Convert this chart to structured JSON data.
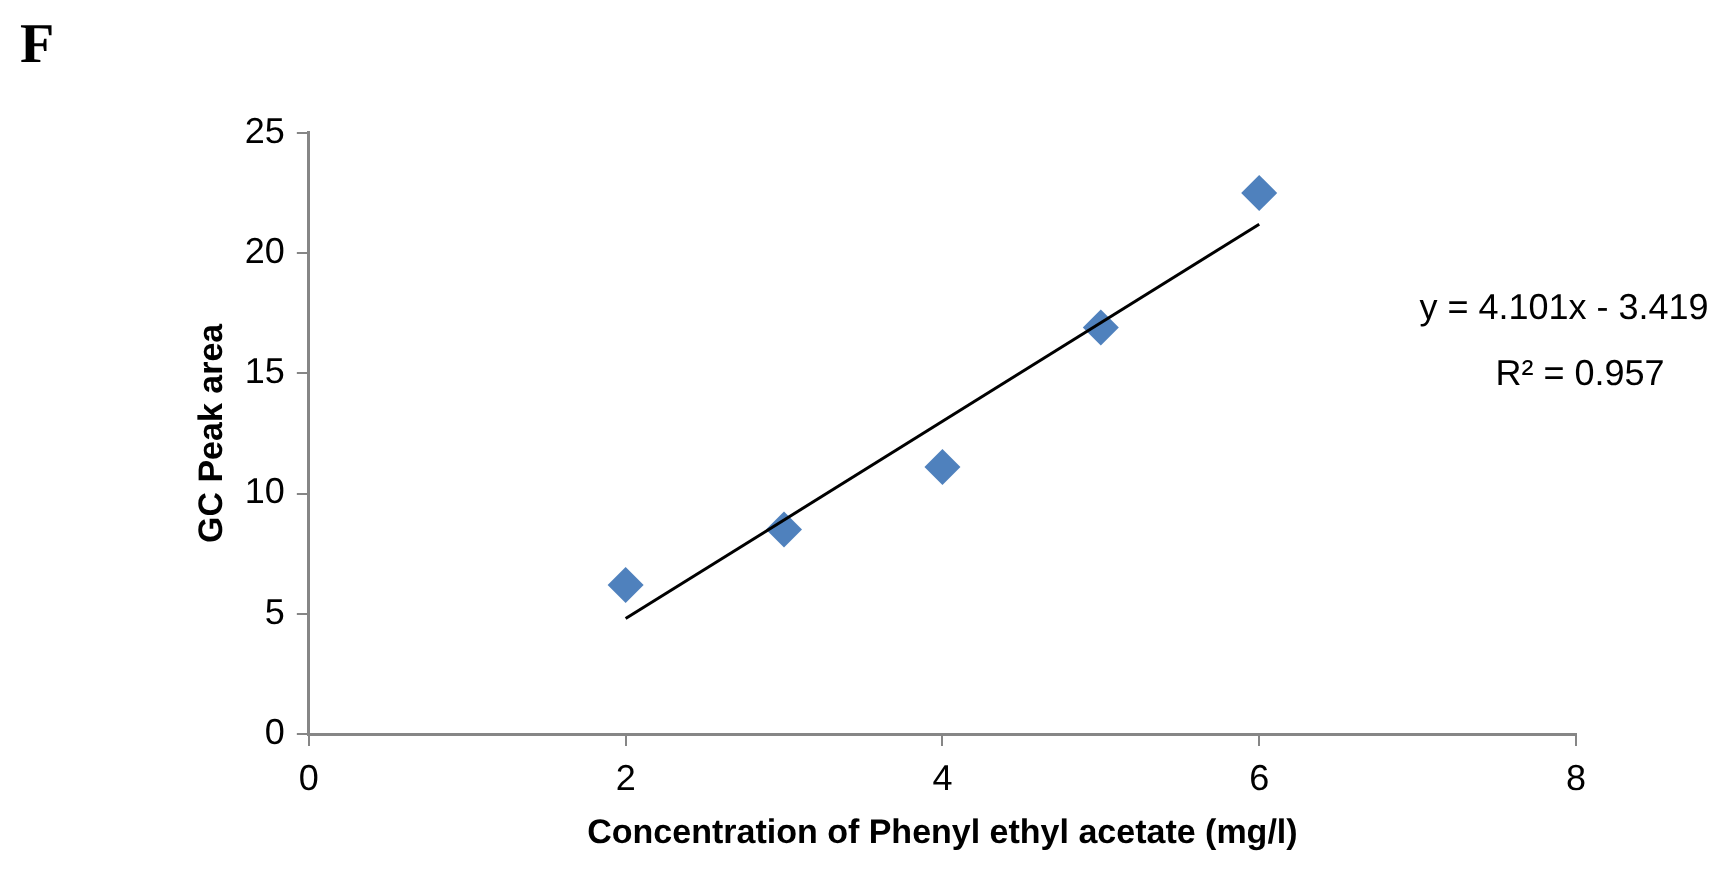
{
  "chart_data": {
    "type": "scatter",
    "title": "F",
    "xlabel": "Concentration of Phenyl ethyl acetate (mg/l)",
    "ylabel": "GC Peak area",
    "series": [
      {
        "type": "scatter",
        "color": "#4f81bd",
        "marker": "diamond",
        "x": [
          2,
          3,
          4,
          5,
          6
        ],
        "values": [
          6.2,
          8.5,
          11.1,
          16.9,
          22.5
        ]
      },
      {
        "type": "line",
        "color": "#000000",
        "marker": "none",
        "line_style": "solid",
        "x": [
          2,
          6
        ],
        "values": [
          4.8,
          21.2
        ]
      }
    ],
    "xlim": [
      0,
      8
    ],
    "xticks": [
      0,
      2,
      4,
      6,
      8
    ],
    "ylim": [
      0,
      25
    ],
    "yticks": [
      0,
      5,
      10,
      15,
      20,
      25
    ],
    "grid": false,
    "legend": false,
    "annotations": [
      "y = 4.101x - 3.419",
      "R² = 0.957"
    ]
  }
}
